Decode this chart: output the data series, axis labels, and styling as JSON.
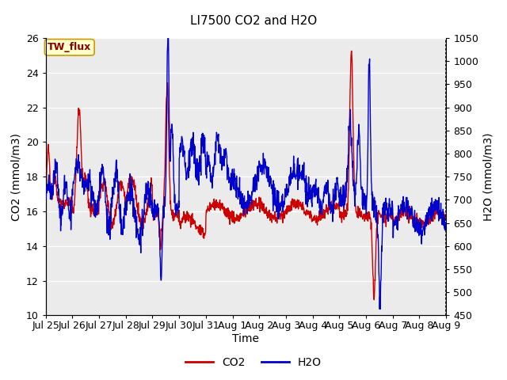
{
  "title": "LI7500 CO2 and H2O",
  "xlabel": "Time",
  "ylabel_left": "CO2 (mmol/m3)",
  "ylabel_right": "H2O (mmol/m3)",
  "ylim_left": [
    10,
    26
  ],
  "ylim_right": [
    450,
    1050
  ],
  "yticks_left": [
    10,
    12,
    14,
    16,
    18,
    20,
    22,
    24,
    26
  ],
  "yticks_right": [
    450,
    500,
    550,
    600,
    650,
    700,
    750,
    800,
    850,
    900,
    950,
    1000,
    1050
  ],
  "x_tick_labels": [
    "Jul 25",
    "Jul 26",
    "Jul 27",
    "Jul 28",
    "Jul 29",
    "Jul 30",
    "Jul 31",
    "Aug 1",
    "Aug 2",
    "Aug 3",
    "Aug 4",
    "Aug 5",
    "Aug 6",
    "Aug 7",
    "Aug 8",
    "Aug 9"
  ],
  "co2_color": "#cc0000",
  "h2o_color": "#0000cc",
  "plot_bg_color": "#ebebeb",
  "fig_bg_color": "#ffffff",
  "annotation_text": "TW_flux",
  "annotation_bg": "#ffffcc",
  "annotation_border": "#cc9900",
  "annotation_text_color": "#880000",
  "title_fontsize": 11,
  "label_fontsize": 10,
  "tick_fontsize": 9,
  "annot_fontsize": 9,
  "legend_fontsize": 10,
  "line_width": 1.0
}
